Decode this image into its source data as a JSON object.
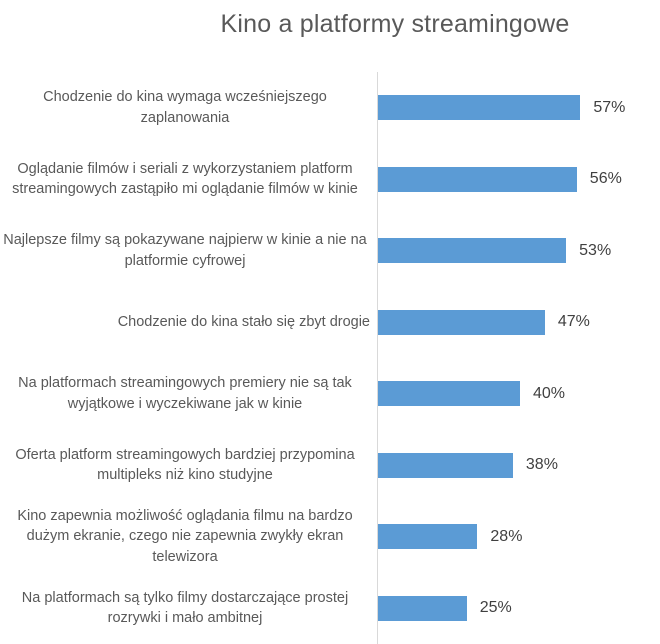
{
  "chart_data": {
    "type": "bar",
    "orientation": "horizontal",
    "title": "Kino a platformy streamingowe",
    "categories": [
      "Chodzenie do kina wymaga wcześniejszego zaplanowania",
      "Oglądanie filmów i seriali z wykorzystaniem platform streamingowych zastąpiło mi oglądanie filmów w kinie",
      "Najlepsze filmy są pokazywane najpierw w kinie a nie na platformie cyfrowej",
      "Chodzenie do kina stało się zbyt drogie",
      "Na platformach streamingowych premiery nie są tak wyjątkowe i wyczekiwane jak w kinie",
      "Oferta platform streamingowych bardziej przypomina multipleks niż kino studyjne",
      "Kino zapewnia możliwość oglądania filmu na bardzo dużym ekranie, czego nie zapewnia zwykły ekran telewizora",
      "Na platformach są tylko filmy dostarczające prostej rozrywki i mało ambitnej"
    ],
    "values": [
      57,
      56,
      53,
      47,
      40,
      38,
      28,
      25
    ],
    "value_suffix": "%",
    "xlim": [
      0,
      60
    ],
    "grid": false,
    "legend": false,
    "bar_color": "#5B9BD5",
    "axis_color": "#D9D9D9",
    "label_color": "#595959",
    "value_color": "#404040",
    "title_color": "#595959"
  }
}
